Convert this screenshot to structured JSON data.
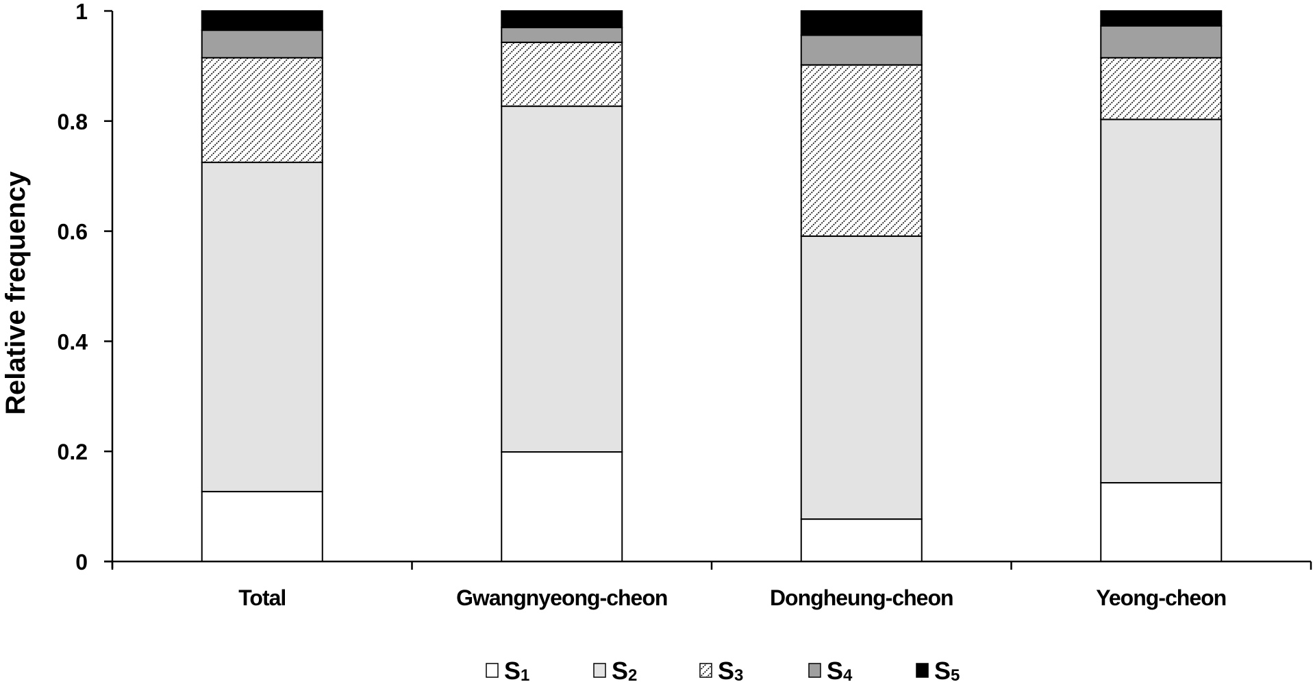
{
  "chart_data": {
    "type": "bar",
    "stacked": true,
    "title": "",
    "xlabel": "",
    "ylabel": "Relative frequency",
    "ylim": [
      0,
      1
    ],
    "yticks": [
      "0",
      "0.2",
      "0.4",
      "0.6",
      "0.8",
      "1"
    ],
    "grid": false,
    "legend_position": "bottom",
    "categories": [
      "Total",
      "Gwangnyeong-cheon",
      "Dongheung-cheon",
      "Yeong-cheon"
    ],
    "series": [
      {
        "name": "S1",
        "fill": "#ffffff",
        "pattern": "none",
        "values": [
          0.127,
          0.199,
          0.077,
          0.143
        ]
      },
      {
        "name": "S2",
        "fill": "#e3e3e3",
        "pattern": "none",
        "values": [
          0.598,
          0.628,
          0.514,
          0.66
        ]
      },
      {
        "name": "S3",
        "fill": "#ffffff",
        "pattern": "diagonal-hatch",
        "values": [
          0.19,
          0.116,
          0.311,
          0.112
        ]
      },
      {
        "name": "S4",
        "fill": "#a0a0a0",
        "pattern": "none",
        "values": [
          0.05,
          0.027,
          0.054,
          0.058
        ]
      },
      {
        "name": "S5",
        "fill": "#000000",
        "pattern": "none",
        "values": [
          0.035,
          0.03,
          0.044,
          0.027
        ]
      }
    ]
  },
  "legend": [
    {
      "base": "S",
      "sub": "1"
    },
    {
      "base": "S",
      "sub": "2"
    },
    {
      "base": "S",
      "sub": "3"
    },
    {
      "base": "S",
      "sub": "4"
    },
    {
      "base": "S",
      "sub": "5"
    }
  ]
}
